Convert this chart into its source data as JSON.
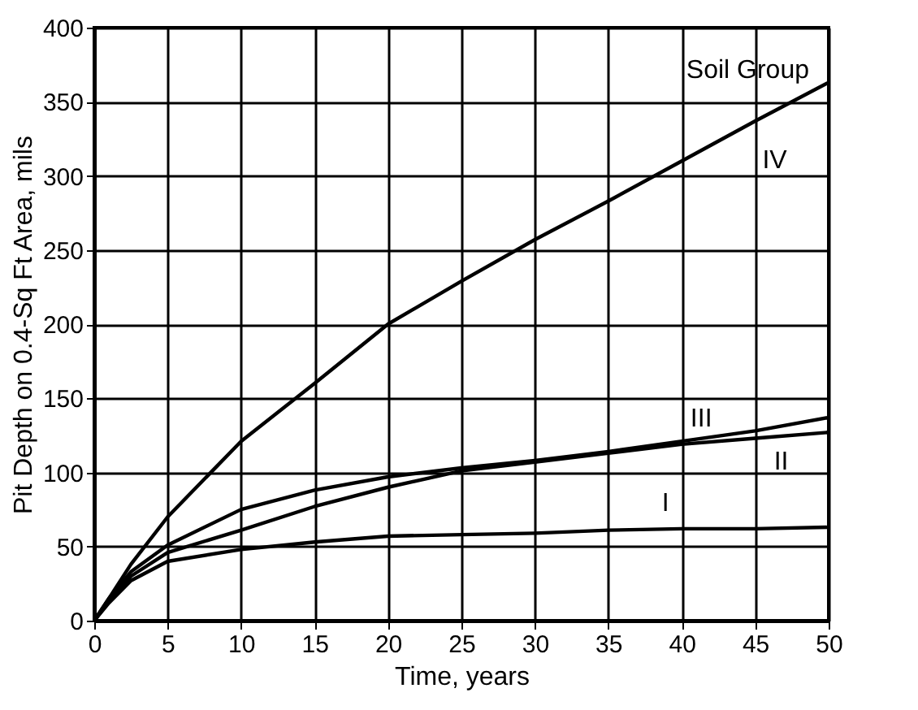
{
  "chart_data": {
    "type": "line",
    "xlabel": "Time, years",
    "ylabel": "Pit Depth on 0.4-Sq Ft Area, mils",
    "x": [
      0,
      1,
      2.5,
      5,
      10,
      15,
      20,
      25,
      30,
      35,
      40,
      45,
      50
    ],
    "series": [
      {
        "name": "I",
        "color": "#000000",
        "values": [
          0,
          12,
          27,
          40,
          48,
          53,
          57,
          58,
          59,
          61,
          62,
          62,
          63
        ]
      },
      {
        "name": "II",
        "color": "#000000",
        "values": [
          0,
          13,
          30,
          46,
          61,
          77,
          90,
          101,
          107,
          113,
          119,
          123,
          127
        ]
      },
      {
        "name": "III",
        "color": "#000000",
        "values": [
          0,
          15,
          33,
          51,
          75,
          88,
          97,
          103,
          108,
          114,
          121,
          128,
          137
        ]
      },
      {
        "name": "IV",
        "color": "#000000",
        "values": [
          0,
          15,
          38,
          70,
          121,
          160,
          200,
          229,
          257,
          283,
          310,
          337,
          363
        ]
      }
    ],
    "annotations": [
      "Soil Group"
    ],
    "xlim": [
      0,
      50
    ],
    "xticks": [
      0,
      5,
      10,
      15,
      20,
      25,
      30,
      35,
      40,
      45,
      50
    ],
    "ylim": [
      0,
      400
    ],
    "yticks": [
      0,
      50,
      100,
      150,
      200,
      250,
      300,
      350,
      400
    ],
    "grid": true,
    "legend": false,
    "line_style": "solid"
  }
}
